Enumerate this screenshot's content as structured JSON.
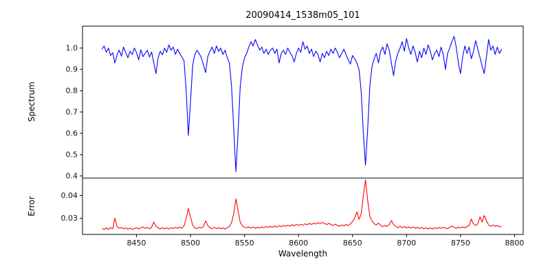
{
  "chart_data": {
    "type": "line",
    "title": "20090414_1538m05_101",
    "xlabel": "Wavelength",
    "grid": false,
    "legend": "none",
    "xlim": [
      8400,
      8808
    ],
    "xticks": [
      8450,
      8500,
      8550,
      8600,
      8650,
      8700,
      8750,
      8800
    ],
    "xtick_labels": [
      "8450",
      "8500",
      "8550",
      "8600",
      "8650",
      "8700",
      "8750",
      "8800"
    ],
    "panels": [
      {
        "name": "spectrum",
        "ylabel": "Spectrum",
        "color": "#0000ff",
        "ylim": [
          0.39,
          1.103
        ],
        "yticks": [
          1.0,
          0.9,
          0.8,
          0.7,
          0.6,
          0.5,
          0.4
        ],
        "ytick_labels": [
          "1.0",
          "0.9",
          "0.8",
          "0.7",
          "0.6",
          "0.5",
          "0.4"
        ],
        "features_note": "absorption minima: 8498->0.59, 8542->0.42, 8662->0.45",
        "series": {
          "x_start": 8418,
          "x_step": 2,
          "y": [
            0.995,
            1.01,
            0.98,
            1.0,
            0.965,
            0.978,
            0.93,
            0.968,
            0.99,
            0.962,
            1.005,
            0.98,
            0.955,
            0.985,
            0.97,
            1.0,
            0.978,
            0.945,
            0.992,
            0.96,
            0.975,
            0.99,
            0.958,
            0.982,
            0.93,
            0.88,
            0.955,
            0.985,
            0.968,
            1.0,
            0.98,
            1.015,
            0.99,
            1.005,
            0.97,
            0.995,
            0.975,
            0.958,
            0.94,
            0.8,
            0.59,
            0.75,
            0.92,
            0.97,
            0.99,
            0.975,
            0.955,
            0.92,
            0.885,
            0.96,
            0.985,
            1.005,
            0.975,
            1.01,
            0.985,
            1.0,
            0.97,
            0.99,
            0.955,
            0.93,
            0.82,
            0.62,
            0.42,
            0.6,
            0.82,
            0.91,
            0.955,
            0.975,
            1.005,
            1.03,
            1.01,
            1.04,
            1.015,
            0.99,
            1.005,
            0.975,
            0.995,
            0.97,
            0.99,
            1.0,
            0.975,
            0.995,
            0.93,
            0.975,
            0.99,
            0.97,
            1.0,
            0.98,
            0.965,
            0.935,
            0.975,
            1.0,
            0.98,
            1.03,
            0.995,
            1.01,
            0.975,
            0.995,
            0.96,
            0.985,
            0.97,
            0.935,
            0.975,
            0.955,
            0.985,
            0.965,
            0.995,
            0.975,
            1.0,
            0.98,
            0.955,
            0.975,
            0.995,
            0.97,
            0.945,
            0.925,
            0.965,
            0.95,
            0.93,
            0.9,
            0.8,
            0.6,
            0.45,
            0.62,
            0.82,
            0.91,
            0.95,
            0.975,
            0.93,
            0.985,
            1.005,
            0.97,
            1.02,
            0.99,
            0.93,
            0.87,
            0.94,
            0.975,
            1.0,
            1.03,
            0.985,
            1.045,
            1.0,
            0.97,
            1.01,
            0.98,
            0.935,
            0.985,
            0.955,
            1.0,
            0.97,
            1.015,
            0.985,
            0.945,
            0.975,
            0.99,
            0.96,
            1.005,
            0.97,
            0.9,
            0.975,
            1.0,
            1.03,
            1.055,
            1.005,
            0.93,
            0.88,
            0.96,
            1.01,
            0.975,
            1.005,
            0.95,
            0.985,
            1.035,
            0.995,
            0.955,
            0.915,
            0.88,
            0.96,
            1.04,
            0.99,
            1.01,
            0.97,
            1.005,
            0.975,
            0.995
          ]
        }
      },
      {
        "name": "error",
        "ylabel": "Error",
        "color": "#ff0000",
        "ylim": [
          0.0228,
          0.0478
        ],
        "yticks": [
          0.04,
          0.03
        ],
        "ytick_labels": [
          "0.04",
          "0.03"
        ],
        "features_note": "error peaks: 8498->0.034, 8542->0.039, 8662->0.047",
        "series": {
          "x_start": 8418,
          "x_step": 2,
          "y": [
            0.0255,
            0.025,
            0.0257,
            0.0251,
            0.0258,
            0.0253,
            0.03,
            0.0262,
            0.0255,
            0.0259,
            0.0253,
            0.0257,
            0.0251,
            0.0256,
            0.025,
            0.0254,
            0.0258,
            0.0252,
            0.0257,
            0.0262,
            0.0255,
            0.0259,
            0.0253,
            0.026,
            0.0283,
            0.0265,
            0.0257,
            0.0252,
            0.0258,
            0.0253,
            0.0257,
            0.0252,
            0.0258,
            0.0254,
            0.0259,
            0.0255,
            0.026,
            0.0256,
            0.0266,
            0.0298,
            0.0344,
            0.0305,
            0.0268,
            0.0257,
            0.0254,
            0.026,
            0.0256,
            0.0264,
            0.0288,
            0.0268,
            0.0257,
            0.0253,
            0.0259,
            0.0254,
            0.0258,
            0.0253,
            0.0257,
            0.0252,
            0.0258,
            0.0263,
            0.028,
            0.032,
            0.0386,
            0.0335,
            0.0282,
            0.0266,
            0.026,
            0.0257,
            0.0262,
            0.0256,
            0.0261,
            0.0255,
            0.026,
            0.0256,
            0.0262,
            0.0258,
            0.0263,
            0.0259,
            0.0264,
            0.026,
            0.0265,
            0.0261,
            0.0267,
            0.0262,
            0.0268,
            0.0264,
            0.0269,
            0.0265,
            0.0271,
            0.0267,
            0.0272,
            0.0268,
            0.0273,
            0.0269,
            0.0275,
            0.0271,
            0.0277,
            0.0272,
            0.0278,
            0.0274,
            0.028,
            0.0276,
            0.0281,
            0.0277,
            0.0272,
            0.0277,
            0.0272,
            0.0268,
            0.0273,
            0.0268,
            0.0264,
            0.027,
            0.0266,
            0.0272,
            0.0268,
            0.0275,
            0.0285,
            0.0302,
            0.0328,
            0.0295,
            0.0318,
            0.0398,
            0.047,
            0.038,
            0.031,
            0.0288,
            0.0276,
            0.027,
            0.0278,
            0.0268,
            0.0262,
            0.0268,
            0.0263,
            0.0272,
            0.029,
            0.0272,
            0.0263,
            0.0258,
            0.0264,
            0.0258,
            0.0263,
            0.0257,
            0.0262,
            0.0256,
            0.0261,
            0.0255,
            0.026,
            0.0254,
            0.0259,
            0.0253,
            0.0258,
            0.0252,
            0.0257,
            0.0252,
            0.0258,
            0.0254,
            0.0259,
            0.0255,
            0.026,
            0.0256,
            0.0254,
            0.026,
            0.0265,
            0.0259,
            0.0255,
            0.0261,
            0.0256,
            0.0262,
            0.0257,
            0.0263,
            0.0268,
            0.0296,
            0.0275,
            0.0268,
            0.0274,
            0.0306,
            0.0283,
            0.0312,
            0.0288,
            0.027,
            0.0264,
            0.027,
            0.0263,
            0.0268,
            0.0262,
            0.0265
          ]
        }
      }
    ]
  }
}
